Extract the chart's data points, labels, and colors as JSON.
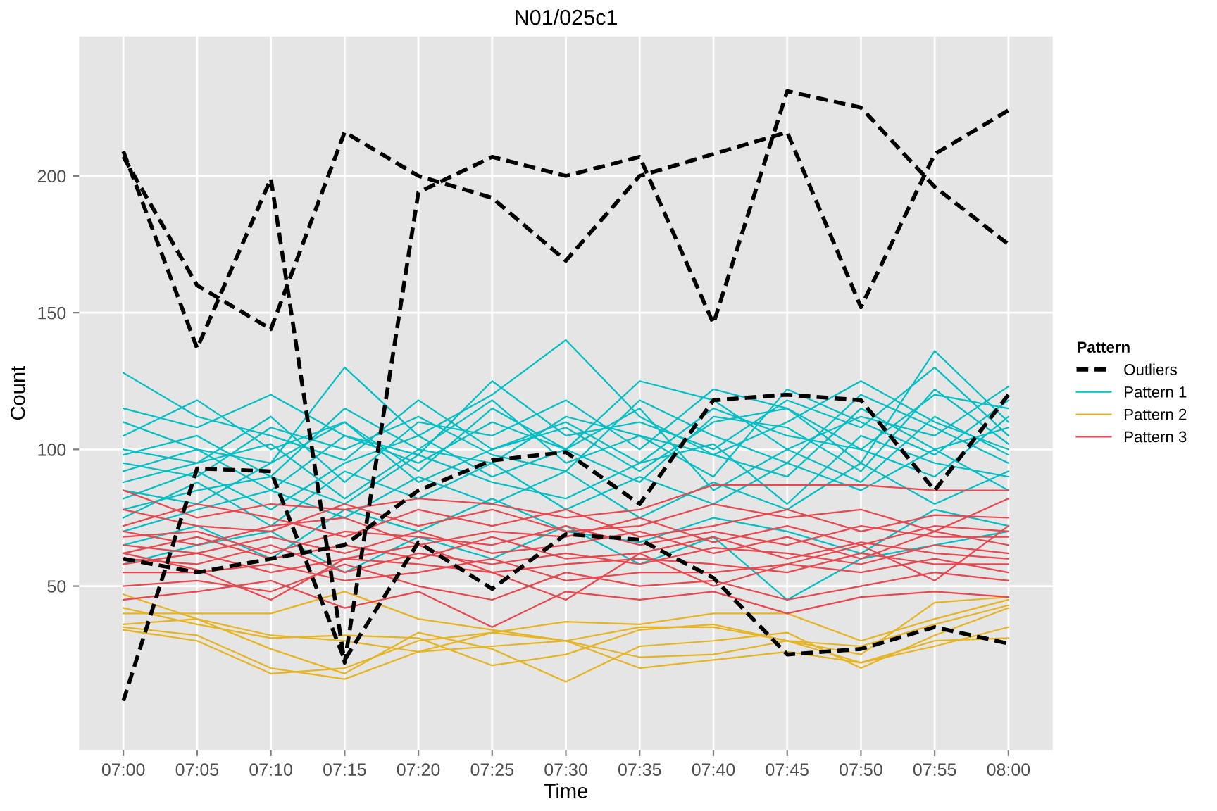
{
  "chart_data": {
    "type": "line",
    "title": "N01/025c1",
    "xlabel": "Time",
    "ylabel": "Count",
    "legend_title": "Pattern",
    "legend": "right",
    "grid": true,
    "categories": [
      "07:00",
      "07:05",
      "07:10",
      "07:15",
      "07:20",
      "07:25",
      "07:30",
      "07:35",
      "07:40",
      "07:45",
      "07:50",
      "07:55",
      "08:00"
    ],
    "ylim": [
      -10,
      251
    ],
    "yticks": [
      50,
      100,
      150,
      200
    ],
    "series": [
      {
        "name": "Outliers",
        "color": "#000000",
        "line_style": "dashed",
        "values": [
          209,
          137,
          199,
          22,
          194,
          207,
          200,
          207,
          146,
          231,
          225,
          196,
          175
        ]
      },
      {
        "color": "#000000",
        "line_style": "dashed",
        "values": [
          207,
          160,
          144,
          216,
          200,
          192,
          169,
          200,
          208,
          216,
          152,
          208,
          224
        ]
      },
      {
        "color": "#000000",
        "line_style": "dashed",
        "values": [
          8,
          93,
          92,
          23,
          66,
          49,
          69,
          67,
          53,
          25,
          27,
          35,
          29
        ]
      },
      {
        "color": "#000000",
        "line_style": "dashed",
        "values": [
          60,
          55,
          60,
          65,
          85,
          96,
          99,
          80,
          118,
          120,
          118,
          85,
          120
        ]
      },
      {
        "name": "Pattern 1",
        "color": "#00bfc4",
        "values": [
          128,
          112,
          105,
          96,
          118,
          100,
          110,
          95,
          115,
          105,
          100,
          120,
          115
        ]
      },
      {
        "color": "#00bfc4",
        "values": [
          115,
          108,
          120,
          105,
          98,
          125,
          105,
          110,
          100,
          118,
          108,
          130,
          105
        ]
      },
      {
        "color": "#00bfc4",
        "values": [
          110,
          100,
          95,
          130,
          105,
          120,
          140,
          112,
          98,
          110,
          125,
          110,
          100
        ]
      },
      {
        "color": "#00bfc4",
        "values": [
          105,
          118,
          100,
          110,
          92,
          115,
          100,
          125,
          118,
          100,
          112,
          105,
          123
        ]
      },
      {
        "color": "#00bfc4",
        "values": [
          100,
          95,
          112,
          88,
          110,
          105,
          118,
          100,
          122,
          115,
          95,
          136,
          110
        ]
      },
      {
        "color": "#00bfc4",
        "values": [
          98,
          105,
          90,
          115,
          100,
          95,
          112,
          105,
          90,
          122,
          110,
          98,
          118
        ]
      },
      {
        "color": "#00bfc4",
        "values": [
          95,
          90,
          108,
          100,
          112,
          98,
          92,
          118,
          105,
          95,
          120,
          108,
          95
        ]
      },
      {
        "color": "#00bfc4",
        "values": [
          92,
          100,
          85,
          105,
          95,
          110,
          100,
          88,
          112,
          108,
          92,
          122,
          102
        ]
      },
      {
        "color": "#00bfc4",
        "values": [
          88,
          95,
          102,
          82,
          100,
          118,
          95,
          105,
          98,
          90,
          115,
          100,
          108
        ]
      },
      {
        "color": "#00bfc4",
        "values": [
          85,
          80,
          95,
          110,
          88,
          100,
          108,
          92,
          110,
          115,
          100,
          90,
          112
        ]
      },
      {
        "color": "#00bfc4",
        "values": [
          82,
          92,
          78,
          95,
          105,
          90,
          100,
          115,
          85,
          100,
          88,
          112,
          98
        ]
      },
      {
        "color": "#00bfc4",
        "values": [
          78,
          85,
          90,
          80,
          98,
          88,
          82,
          95,
          102,
          80,
          105,
          95,
          90
        ]
      },
      {
        "color": "#00bfc4",
        "values": [
          75,
          88,
          72,
          92,
          82,
          95,
          78,
          90,
          80,
          95,
          85,
          100,
          85
        ]
      },
      {
        "color": "#00bfc4",
        "values": [
          70,
          78,
          85,
          75,
          90,
          80,
          92,
          75,
          88,
          78,
          95,
          80,
          92
        ]
      },
      {
        "color": "#00bfc4",
        "values": [
          65,
          72,
          60,
          78,
          70,
          82,
          70,
          66,
          75,
          70,
          62,
          78,
          72
        ]
      },
      {
        "color": "#00bfc4",
        "values": [
          58,
          65,
          70,
          55,
          68,
          60,
          72,
          58,
          68,
          45,
          60,
          65,
          70
        ]
      },
      {
        "name": "Pattern 2",
        "color": "#e6b422",
        "values": [
          40,
          40,
          40,
          48,
          38,
          34,
          30,
          35,
          35,
          30,
          25,
          44,
          46
        ]
      },
      {
        "color": "#e6b422",
        "values": [
          35,
          32,
          20,
          16,
          26,
          33,
          30,
          24,
          25,
          30,
          22,
          28,
          35
        ]
      },
      {
        "color": "#e6b422",
        "values": [
          36,
          38,
          27,
          18,
          33,
          27,
          15,
          28,
          30,
          33,
          20,
          32,
          42
        ]
      },
      {
        "color": "#e6b422",
        "values": [
          34,
          30,
          18,
          20,
          30,
          33,
          37,
          36,
          40,
          40,
          30,
          38,
          45
        ]
      },
      {
        "color": "#e6b422",
        "values": [
          47,
          38,
          32,
          30,
          26,
          28,
          30,
          20,
          23,
          26,
          22,
          30,
          31
        ]
      },
      {
        "color": "#e6b422",
        "values": [
          42,
          36,
          31,
          32,
          31,
          21,
          25,
          34,
          36,
          30,
          28,
          36,
          43
        ]
      },
      {
        "name": "Pattern 3",
        "color": "#e8474f",
        "values": [
          85,
          75,
          80,
          78,
          82,
          80,
          75,
          78,
          87,
          87,
          87,
          85,
          85
        ]
      },
      {
        "color": "#e8474f",
        "values": [
          78,
          72,
          70,
          80,
          72,
          78,
          70,
          72,
          80,
          75,
          78,
          70,
          82
        ]
      },
      {
        "color": "#e8474f",
        "values": [
          72,
          80,
          75,
          68,
          78,
          72,
          78,
          68,
          72,
          78,
          70,
          76,
          75
        ]
      },
      {
        "color": "#e8474f",
        "values": [
          70,
          65,
          72,
          75,
          65,
          70,
          68,
          75,
          66,
          72,
          65,
          72,
          70
        ]
      },
      {
        "color": "#e8474f",
        "values": [
          68,
          70,
          62,
          70,
          68,
          65,
          72,
          65,
          70,
          65,
          72,
          68,
          68
        ]
      },
      {
        "color": "#e8474f",
        "values": [
          65,
          62,
          68,
          62,
          70,
          62,
          65,
          70,
          62,
          68,
          60,
          70,
          65
        ]
      },
      {
        "color": "#e8474f",
        "values": [
          62,
          68,
          60,
          65,
          60,
          68,
          60,
          62,
          68,
          60,
          66,
          62,
          60
        ]
      },
      {
        "color": "#e8474f",
        "values": [
          60,
          58,
          65,
          55,
          62,
          58,
          62,
          58,
          64,
          62,
          58,
          65,
          62
        ]
      },
      {
        "color": "#e8474f",
        "values": [
          58,
          62,
          55,
          60,
          58,
          55,
          58,
          60,
          58,
          55,
          62,
          58,
          58
        ]
      },
      {
        "color": "#e8474f",
        "values": [
          55,
          55,
          58,
          52,
          55,
          60,
          52,
          55,
          55,
          58,
          55,
          60,
          55
        ]
      },
      {
        "color": "#e8474f",
        "values": [
          50,
          52,
          48,
          58,
          50,
          45,
          55,
          50,
          52,
          45,
          50,
          55,
          52
        ]
      },
      {
        "color": "#e8474f",
        "values": [
          45,
          48,
          52,
          42,
          48,
          35,
          48,
          45,
          48,
          40,
          46,
          48,
          46
        ]
      },
      {
        "color": "#e8474f",
        "values": [
          62,
          56,
          45,
          60,
          65,
          55,
          45,
          62,
          50,
          58,
          65,
          52,
          72
        ]
      }
    ]
  }
}
